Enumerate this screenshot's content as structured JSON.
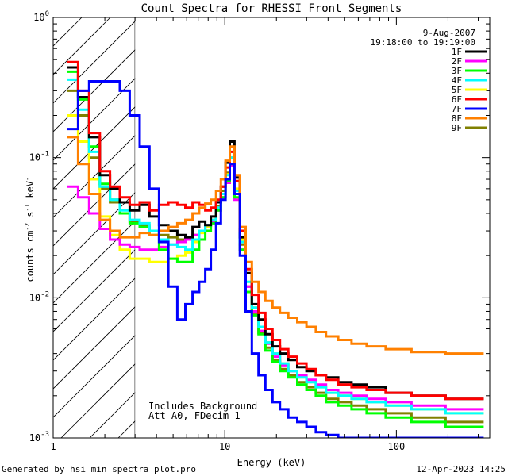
{
  "chart_data": {
    "type": "line",
    "title": "Count Spectra for RHESSI Front Segments",
    "xlabel": "Energy (keV)",
    "ylabel_parts": [
      "counts cm",
      "-2",
      " s",
      "-1",
      " keV",
      "-1"
    ],
    "x_scale": "log",
    "y_scale": "log",
    "xlim": [
      1,
      350
    ],
    "ylim": [
      0.001,
      1
    ],
    "x_ticks": [
      {
        "value": 1,
        "label": "1"
      },
      {
        "value": 10,
        "label": "10"
      },
      {
        "value": 100,
        "label": "100"
      }
    ],
    "y_ticks": [
      {
        "value": 1,
        "mantissa": "10",
        "exp": "0"
      },
      {
        "value": 0.1,
        "mantissa": "10",
        "exp": "-1"
      },
      {
        "value": 0.01,
        "mantissa": "10",
        "exp": "-2"
      },
      {
        "value": 0.001,
        "mantissa": "10",
        "exp": "-3"
      }
    ],
    "date": "9-Aug-2007",
    "time_range": "19:18:00 to 19:19:00",
    "hatch_region_kev": [
      1,
      3
    ],
    "annotations": [
      "Includes Background",
      "Att A0, FDecim 1"
    ],
    "series": [
      {
        "name": "1F",
        "color": "#000000",
        "values": [
          0.44,
          0.27,
          0.14,
          0.075,
          0.06,
          0.048,
          0.042,
          0.046,
          0.038,
          0.033,
          0.03,
          0.028,
          0.027,
          0.032,
          0.035,
          0.033,
          0.038,
          0.048,
          0.062,
          0.092,
          0.13,
          0.072,
          0.027,
          0.015,
          0.009,
          0.007,
          0.0055,
          0.0045,
          0.004,
          0.0036,
          0.0032,
          0.003,
          0.0028,
          0.0027,
          0.0025,
          0.0024,
          0.0023,
          0.0021,
          0.002,
          0.0019
        ]
      },
      {
        "name": "2F",
        "color": "#ff00ff",
        "values": [
          0.062,
          0.052,
          0.04,
          0.031,
          0.026,
          0.024,
          0.023,
          0.022,
          0.022,
          0.023,
          0.024,
          0.025,
          0.026,
          0.028,
          0.03,
          0.033,
          0.035,
          0.042,
          0.052,
          0.066,
          0.088,
          0.05,
          0.022,
          0.012,
          0.008,
          0.0058,
          0.0047,
          0.0038,
          0.0033,
          0.003,
          0.0028,
          0.0026,
          0.0024,
          0.0022,
          0.0021,
          0.002,
          0.0019,
          0.0018,
          0.0017,
          0.0016
        ]
      },
      {
        "name": "3F",
        "color": "#00ff00",
        "values": [
          0.41,
          0.26,
          0.12,
          0.065,
          0.05,
          0.04,
          0.034,
          0.032,
          0.028,
          0.022,
          0.019,
          0.018,
          0.018,
          0.022,
          0.026,
          0.03,
          0.034,
          0.042,
          0.052,
          0.068,
          0.09,
          0.052,
          0.022,
          0.011,
          0.0075,
          0.0055,
          0.0042,
          0.0035,
          0.003,
          0.0027,
          0.0024,
          0.0022,
          0.002,
          0.0018,
          0.0017,
          0.0016,
          0.0015,
          0.0014,
          0.0013,
          0.0012
        ]
      },
      {
        "name": "4F",
        "color": "#00ffff",
        "values": [
          0.36,
          0.22,
          0.11,
          0.062,
          0.05,
          0.042,
          0.036,
          0.034,
          0.03,
          0.026,
          0.024,
          0.023,
          0.022,
          0.026,
          0.03,
          0.033,
          0.036,
          0.044,
          0.055,
          0.075,
          0.1,
          0.058,
          0.025,
          0.013,
          0.0085,
          0.0062,
          0.0048,
          0.004,
          0.0034,
          0.003,
          0.0027,
          0.0025,
          0.0023,
          0.0021,
          0.002,
          0.0019,
          0.0018,
          0.0017,
          0.0016,
          0.0015
        ]
      },
      {
        "name": "5F",
        "color": "#ffff00",
        "values": [
          0.2,
          0.13,
          0.07,
          0.038,
          0.028,
          0.022,
          0.019,
          0.019,
          0.018,
          0.018,
          0.019,
          0.02,
          0.021,
          0.025,
          0.029,
          0.032,
          0.036,
          0.044,
          0.055,
          0.076,
          0.1,
          0.06,
          0.026,
          0.013,
          0.0085,
          0.0062,
          0.0048,
          0.004,
          0.0034,
          0.003,
          0.0027,
          0.0025,
          0.0023,
          0.0021,
          0.002,
          0.0019,
          0.0018,
          0.0017,
          0.0016,
          0.0015
        ]
      },
      {
        "name": "6F",
        "color": "#ff0000",
        "values": [
          0.48,
          0.3,
          0.15,
          0.08,
          0.062,
          0.052,
          0.046,
          0.048,
          0.042,
          0.046,
          0.048,
          0.046,
          0.044,
          0.048,
          0.046,
          0.042,
          0.044,
          0.05,
          0.062,
          0.085,
          0.11,
          0.068,
          0.03,
          0.016,
          0.0105,
          0.0078,
          0.006,
          0.005,
          0.0043,
          0.0038,
          0.0034,
          0.0031,
          0.0028,
          0.0026,
          0.0024,
          0.0023,
          0.0022,
          0.0021,
          0.002,
          0.0019
        ]
      },
      {
        "name": "7F",
        "color": "#0000ff",
        "values": [
          0.16,
          0.3,
          0.35,
          0.35,
          0.35,
          0.3,
          0.2,
          0.12,
          0.06,
          0.025,
          0.012,
          0.007,
          0.009,
          0.011,
          0.013,
          0.016,
          0.022,
          0.034,
          0.05,
          0.07,
          0.09,
          0.055,
          0.02,
          0.008,
          0.004,
          0.0028,
          0.0022,
          0.0018,
          0.0016,
          0.0014,
          0.0013,
          0.0012,
          0.0011,
          0.00105,
          0.001,
          0.001,
          0.001,
          0.001,
          0.001,
          0.001
        ]
      },
      {
        "name": "8F",
        "color": "#ff8000",
        "values": [
          0.14,
          0.09,
          0.055,
          0.036,
          0.03,
          0.027,
          0.027,
          0.029,
          0.028,
          0.03,
          0.032,
          0.034,
          0.036,
          0.04,
          0.044,
          0.047,
          0.05,
          0.058,
          0.07,
          0.095,
          0.12,
          0.075,
          0.032,
          0.018,
          0.013,
          0.011,
          0.0095,
          0.0085,
          0.0078,
          0.0072,
          0.0067,
          0.0062,
          0.0057,
          0.0053,
          0.005,
          0.0047,
          0.0045,
          0.0043,
          0.0041,
          0.004
        ]
      },
      {
        "name": "9F",
        "color": "#808000",
        "values": [
          0.3,
          0.2,
          0.1,
          0.06,
          0.048,
          0.04,
          0.035,
          0.033,
          0.03,
          0.028,
          0.027,
          0.026,
          0.026,
          0.028,
          0.03,
          0.033,
          0.036,
          0.045,
          0.058,
          0.078,
          0.1,
          0.058,
          0.024,
          0.012,
          0.0078,
          0.0056,
          0.0044,
          0.0036,
          0.0031,
          0.0028,
          0.0025,
          0.0023,
          0.0021,
          0.0019,
          0.0018,
          0.0017,
          0.0016,
          0.0015,
          0.0014,
          0.0013
        ]
      }
    ],
    "energies_kev": [
      1.3,
      1.5,
      1.75,
      2.0,
      2.3,
      2.6,
      3.0,
      3.4,
      3.9,
      4.4,
      5.0,
      5.6,
      6.2,
      6.8,
      7.4,
      8.0,
      8.6,
      9.2,
      9.8,
      10.4,
      11.0,
      11.8,
      12.7,
      13.8,
      15.0,
      16.5,
      18.0,
      20.0,
      22.0,
      25.0,
      28.0,
      32.0,
      36.0,
      42.0,
      50.0,
      60.0,
      75.0,
      100.0,
      150.0,
      250.0
    ]
  },
  "footer": {
    "generated_by": "Generated by hsi_min_spectra_plot.pro",
    "timestamp": "12-Apr-2023 14:25"
  }
}
